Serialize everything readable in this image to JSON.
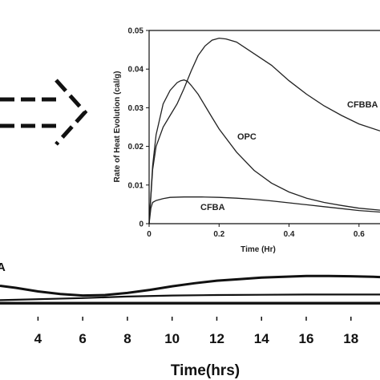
{
  "chart_data": [
    {
      "type": "line",
      "role": "main",
      "title": "",
      "xlabel": "Time(hrs)",
      "ylabel": "",
      "x_ticks": [
        "4",
        "6",
        "8",
        "10",
        "12",
        "14",
        "16",
        "18"
      ],
      "xlim": [
        2.3,
        19.3
      ],
      "ylim": [
        0,
        1
      ],
      "partial_label": "A",
      "series": [
        {
          "x": [
            2.3,
            3,
            4,
            5,
            6,
            7,
            8,
            9,
            10,
            11,
            12,
            13,
            14,
            15,
            16,
            17,
            18,
            19,
            19.3
          ],
          "y": [
            0.68,
            0.64,
            0.57,
            0.52,
            0.49,
            0.5,
            0.54,
            0.6,
            0.67,
            0.73,
            0.78,
            0.81,
            0.84,
            0.855,
            0.87,
            0.87,
            0.865,
            0.855,
            0.85
          ]
        },
        {
          "x": [
            2.3,
            6,
            8,
            10,
            12,
            14,
            16,
            18,
            19.3
          ],
          "y": [
            0.4,
            0.44,
            0.47,
            0.49,
            0.5,
            0.505,
            0.51,
            0.51,
            0.51
          ]
        },
        {
          "x": [
            2.3,
            19.3
          ],
          "y": [
            0.34,
            0.34
          ]
        }
      ]
    },
    {
      "type": "line",
      "role": "inset",
      "title": "",
      "xlabel": "Time (Hr)",
      "ylabel": "Rate of Heat Evolution (cal/g)",
      "xlim": [
        0,
        0.66
      ],
      "ylim": [
        0,
        0.05
      ],
      "x_ticks": [
        0,
        0.2,
        0.4,
        0.6
      ],
      "x_tick_labels": [
        "0",
        "0.2",
        "0.4",
        "0.6"
      ],
      "y_ticks": [
        0,
        0.01,
        0.02,
        0.03,
        0.04,
        0.05
      ],
      "y_tick_labels": [
        "0",
        "0.01",
        "0.02",
        "0.03",
        "0.04",
        "0.05"
      ],
      "series": [
        {
          "name": "CFBBA",
          "x": [
            0,
            0.01,
            0.02,
            0.04,
            0.06,
            0.08,
            0.1,
            0.12,
            0.14,
            0.16,
            0.18,
            0.2,
            0.22,
            0.25,
            0.3,
            0.35,
            0.4,
            0.45,
            0.5,
            0.55,
            0.6,
            0.66
          ],
          "y": [
            0,
            0.014,
            0.02,
            0.025,
            0.028,
            0.031,
            0.035,
            0.0395,
            0.0435,
            0.046,
            0.0475,
            0.048,
            0.0478,
            0.047,
            0.044,
            0.041,
            0.037,
            0.0335,
            0.0305,
            0.028,
            0.0258,
            0.024
          ]
        },
        {
          "name": "OPC",
          "x": [
            0,
            0.01,
            0.02,
            0.04,
            0.06,
            0.08,
            0.09,
            0.1,
            0.11,
            0.12,
            0.14,
            0.16,
            0.18,
            0.2,
            0.25,
            0.3,
            0.35,
            0.4,
            0.45,
            0.5,
            0.55,
            0.6,
            0.66
          ],
          "y": [
            0,
            0.015,
            0.023,
            0.031,
            0.0345,
            0.0365,
            0.037,
            0.0372,
            0.0368,
            0.0358,
            0.0335,
            0.0305,
            0.0275,
            0.0245,
            0.0185,
            0.0138,
            0.0105,
            0.0082,
            0.0066,
            0.0055,
            0.0047,
            0.004,
            0.0035
          ]
        },
        {
          "name": "CFBA",
          "x": [
            0,
            0.005,
            0.01,
            0.02,
            0.04,
            0.06,
            0.1,
            0.15,
            0.2,
            0.25,
            0.3,
            0.35,
            0.4,
            0.45,
            0.5,
            0.55,
            0.6,
            0.66
          ],
          "y": [
            0,
            0.004,
            0.0055,
            0.006,
            0.0065,
            0.0068,
            0.0069,
            0.0069,
            0.0068,
            0.0066,
            0.0063,
            0.0059,
            0.0054,
            0.0049,
            0.0044,
            0.0039,
            0.0034,
            0.003
          ]
        }
      ]
    }
  ]
}
